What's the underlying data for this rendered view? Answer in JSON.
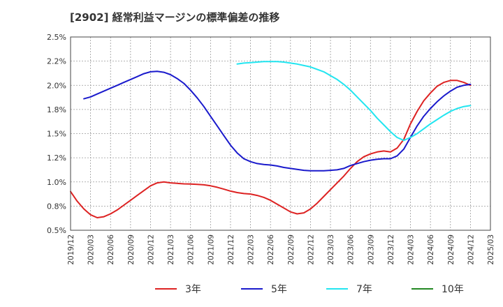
{
  "chart_data": {
    "type": "line",
    "title": "[2902]  経常利益マージンの標準偏差の推移",
    "xlabel": "",
    "ylabel": "",
    "ylim": [
      0.5,
      2.5
    ],
    "grid": true,
    "legend_placement": "bottom",
    "y_ticks": [
      "2.5%",
      "2.2%",
      "2.0%",
      "1.8%",
      "1.5%",
      "1.2%",
      "1.0%",
      "0.8%",
      "0.5%"
    ],
    "y_tick_values": [
      2.5,
      2.25,
      2.0,
      1.75,
      1.5,
      1.25,
      1.0,
      0.75,
      0.5
    ],
    "x_ticks": [
      "2019/12",
      "2020/03",
      "2020/06",
      "2020/09",
      "2020/12",
      "2021/03",
      "2021/06",
      "2021/09",
      "2021/12",
      "2022/03",
      "2022/06",
      "2022/09",
      "2022/12",
      "2023/03",
      "2023/06",
      "2023/09",
      "2023/12",
      "2024/03",
      "2024/06",
      "2024/09",
      "2024/12",
      "2025/03"
    ],
    "series": [
      {
        "name": "3年",
        "color": "#dd2222",
        "points": [
          [
            "2019/12",
            0.9
          ],
          [
            "2020/01",
            0.8
          ],
          [
            "2020/02",
            0.72
          ],
          [
            "2020/03",
            0.66
          ],
          [
            "2020/04",
            0.63
          ],
          [
            "2020/05",
            0.64
          ],
          [
            "2020/06",
            0.67
          ],
          [
            "2020/07",
            0.71
          ],
          [
            "2020/08",
            0.76
          ],
          [
            "2020/09",
            0.81
          ],
          [
            "2020/10",
            0.86
          ],
          [
            "2020/11",
            0.91
          ],
          [
            "2020/12",
            0.96
          ],
          [
            "2021/01",
            0.99
          ],
          [
            "2021/02",
            1.0
          ],
          [
            "2021/03",
            0.99
          ],
          [
            "2021/04",
            0.985
          ],
          [
            "2021/05",
            0.98
          ],
          [
            "2021/06",
            0.978
          ],
          [
            "2021/07",
            0.975
          ],
          [
            "2021/08",
            0.97
          ],
          [
            "2021/09",
            0.96
          ],
          [
            "2021/10",
            0.945
          ],
          [
            "2021/11",
            0.925
          ],
          [
            "2021/12",
            0.905
          ],
          [
            "2022/01",
            0.89
          ],
          [
            "2022/02",
            0.88
          ],
          [
            "2022/03",
            0.875
          ],
          [
            "2022/04",
            0.86
          ],
          [
            "2022/05",
            0.84
          ],
          [
            "2022/06",
            0.81
          ],
          [
            "2022/07",
            0.77
          ],
          [
            "2022/08",
            0.73
          ],
          [
            "2022/09",
            0.69
          ],
          [
            "2022/10",
            0.67
          ],
          [
            "2022/11",
            0.68
          ],
          [
            "2022/12",
            0.72
          ],
          [
            "2023/01",
            0.78
          ],
          [
            "2023/02",
            0.85
          ],
          [
            "2023/03",
            0.92
          ],
          [
            "2023/04",
            0.99
          ],
          [
            "2023/05",
            1.06
          ],
          [
            "2023/06",
            1.14
          ],
          [
            "2023/07",
            1.21
          ],
          [
            "2023/08",
            1.26
          ],
          [
            "2023/09",
            1.29
          ],
          [
            "2023/10",
            1.31
          ],
          [
            "2023/11",
            1.32
          ],
          [
            "2023/12",
            1.31
          ],
          [
            "2024/01",
            1.35
          ],
          [
            "2024/02",
            1.44
          ],
          [
            "2024/03",
            1.6
          ],
          [
            "2024/04",
            1.73
          ],
          [
            "2024/05",
            1.84
          ],
          [
            "2024/06",
            1.92
          ],
          [
            "2024/07",
            1.99
          ],
          [
            "2024/08",
            2.03
          ],
          [
            "2024/09",
            2.05
          ],
          [
            "2024/10",
            2.05
          ],
          [
            "2024/11",
            2.03
          ],
          [
            "2024/12",
            2.0
          ]
        ]
      },
      {
        "name": "5年",
        "color": "#1a1acc",
        "points": [
          [
            "2020/02",
            1.86
          ],
          [
            "2020/03",
            1.88
          ],
          [
            "2020/04",
            1.91
          ],
          [
            "2020/05",
            1.94
          ],
          [
            "2020/06",
            1.97
          ],
          [
            "2020/07",
            2.0
          ],
          [
            "2020/08",
            2.03
          ],
          [
            "2020/09",
            2.06
          ],
          [
            "2020/10",
            2.09
          ],
          [
            "2020/11",
            2.12
          ],
          [
            "2020/12",
            2.14
          ],
          [
            "2021/01",
            2.145
          ],
          [
            "2021/02",
            2.135
          ],
          [
            "2021/03",
            2.11
          ],
          [
            "2021/04",
            2.07
          ],
          [
            "2021/05",
            2.02
          ],
          [
            "2021/06",
            1.95
          ],
          [
            "2021/07",
            1.87
          ],
          [
            "2021/08",
            1.78
          ],
          [
            "2021/09",
            1.68
          ],
          [
            "2021/10",
            1.58
          ],
          [
            "2021/11",
            1.48
          ],
          [
            "2021/12",
            1.38
          ],
          [
            "2022/01",
            1.3
          ],
          [
            "2022/02",
            1.24
          ],
          [
            "2022/03",
            1.21
          ],
          [
            "2022/04",
            1.19
          ],
          [
            "2022/05",
            1.18
          ],
          [
            "2022/06",
            1.175
          ],
          [
            "2022/07",
            1.165
          ],
          [
            "2022/08",
            1.15
          ],
          [
            "2022/09",
            1.14
          ],
          [
            "2022/10",
            1.13
          ],
          [
            "2022/11",
            1.12
          ],
          [
            "2022/12",
            1.115
          ],
          [
            "2023/01",
            1.115
          ],
          [
            "2023/02",
            1.115
          ],
          [
            "2023/03",
            1.12
          ],
          [
            "2023/04",
            1.125
          ],
          [
            "2023/05",
            1.14
          ],
          [
            "2023/06",
            1.17
          ],
          [
            "2023/07",
            1.19
          ],
          [
            "2023/08",
            1.21
          ],
          [
            "2023/09",
            1.225
          ],
          [
            "2023/10",
            1.235
          ],
          [
            "2023/11",
            1.24
          ],
          [
            "2023/12",
            1.24
          ],
          [
            "2024/01",
            1.27
          ],
          [
            "2024/02",
            1.34
          ],
          [
            "2024/03",
            1.46
          ],
          [
            "2024/04",
            1.58
          ],
          [
            "2024/05",
            1.68
          ],
          [
            "2024/06",
            1.76
          ],
          [
            "2024/07",
            1.83
          ],
          [
            "2024/08",
            1.89
          ],
          [
            "2024/09",
            1.94
          ],
          [
            "2024/10",
            1.98
          ],
          [
            "2024/11",
            2.0
          ],
          [
            "2024/12",
            2.01
          ]
        ]
      },
      {
        "name": "7年",
        "color": "#22e5f0",
        "points": [
          [
            "2022/01",
            2.22
          ],
          [
            "2022/02",
            2.23
          ],
          [
            "2022/03",
            2.235
          ],
          [
            "2022/04",
            2.24
          ],
          [
            "2022/05",
            2.245
          ],
          [
            "2022/06",
            2.245
          ],
          [
            "2022/07",
            2.245
          ],
          [
            "2022/08",
            2.24
          ],
          [
            "2022/09",
            2.23
          ],
          [
            "2022/10",
            2.22
          ],
          [
            "2022/11",
            2.205
          ],
          [
            "2022/12",
            2.19
          ],
          [
            "2023/01",
            2.165
          ],
          [
            "2023/02",
            2.14
          ],
          [
            "2023/03",
            2.1
          ],
          [
            "2023/04",
            2.06
          ],
          [
            "2023/05",
            2.01
          ],
          [
            "2023/06",
            1.95
          ],
          [
            "2023/07",
            1.88
          ],
          [
            "2023/08",
            1.81
          ],
          [
            "2023/09",
            1.74
          ],
          [
            "2023/10",
            1.66
          ],
          [
            "2023/11",
            1.59
          ],
          [
            "2023/12",
            1.52
          ],
          [
            "2024/01",
            1.46
          ],
          [
            "2024/02",
            1.43
          ],
          [
            "2024/03",
            1.46
          ],
          [
            "2024/04",
            1.5
          ],
          [
            "2024/05",
            1.55
          ],
          [
            "2024/06",
            1.6
          ],
          [
            "2024/07",
            1.645
          ],
          [
            "2024/08",
            1.69
          ],
          [
            "2024/09",
            1.73
          ],
          [
            "2024/10",
            1.76
          ],
          [
            "2024/11",
            1.78
          ],
          [
            "2024/12",
            1.79
          ]
        ]
      },
      {
        "name": "10年",
        "color": "#228822",
        "points": []
      }
    ]
  }
}
